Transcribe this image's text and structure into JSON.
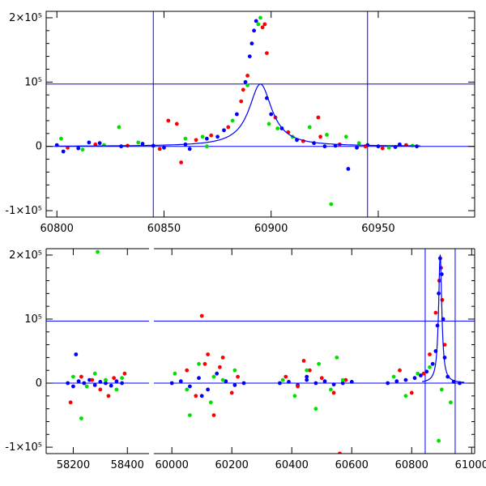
{
  "chart_data": [
    {
      "type": "scatter",
      "xlim": [
        60795,
        60995
      ],
      "ylim": [
        -110000,
        210000
      ],
      "x_ticks": [
        60800,
        60850,
        60900,
        60950
      ],
      "x_tick_labels": [
        "60800",
        "60850",
        "60900",
        "60950"
      ],
      "y_ticks": [
        -100000,
        0,
        100000,
        200000
      ],
      "y_tick_labels": [
        "-1×10⁵",
        "0",
        "10⁵",
        "2×10⁵"
      ],
      "grid": false,
      "colors": {
        "red": "#ff0000",
        "green": "#00e000",
        "blue": "#0000ff",
        "lines": "#0000ff"
      },
      "reference_lines": {
        "horizontal": [
          0,
          97000
        ],
        "vertical": [
          60845,
          60945
        ]
      },
      "model_curve": {
        "peak_x": 60895,
        "peak_y": 97000,
        "half_width": 6.5,
        "x_range": [
          60800,
          60970
        ]
      },
      "series": [
        {
          "color": "blue",
          "x": [
            60800,
            60810,
            60820,
            60830,
            60840,
            60850,
            60860,
            60870,
            60878,
            60884,
            60888,
            60890,
            60891,
            60892,
            60893,
            60898,
            60900,
            60905,
            60912,
            60920,
            60930,
            60940,
            60950,
            60960,
            60968,
            60936,
            60803,
            60815,
            60845,
            60862,
            60875,
            60925,
            60945,
            60958
          ],
          "y": [
            2000,
            -3000,
            5000,
            0,
            4000,
            -2000,
            3000,
            12000,
            25000,
            50000,
            100000,
            140000,
            160000,
            180000,
            195000,
            75000,
            50000,
            28000,
            10000,
            5000,
            1000,
            -2000,
            0,
            3000,
            0,
            -35000,
            -8000,
            6000,
            1000,
            -4000,
            15000,
            0,
            2000,
            -1000
          ]
        },
        {
          "color": "red",
          "x": [
            60805,
            60818,
            60833,
            60848,
            60858,
            60865,
            60872,
            60880,
            60886,
            60889,
            60897,
            60898,
            60902,
            60908,
            60915,
            60922,
            60923,
            60932,
            60944,
            60952,
            60963,
            60852,
            60856,
            60887,
            60896
          ],
          "y": [
            -2000,
            3000,
            1000,
            -4000,
            -25000,
            10000,
            17000,
            30000,
            70000,
            110000,
            190000,
            145000,
            45000,
            22000,
            8000,
            45000,
            15000,
            3000,
            0,
            -3000,
            2000,
            40000,
            35000,
            88000,
            185000
          ]
        },
        {
          "color": "green",
          "x": [
            60802,
            60812,
            60829,
            60838,
            60860,
            60870,
            60882,
            60889,
            60894,
            60899,
            60903,
            60910,
            60918,
            60926,
            60928,
            60935,
            60941,
            60955,
            60966,
            60822,
            60868,
            60895
          ],
          "y": [
            12000,
            -5000,
            30000,
            6000,
            12000,
            0,
            40000,
            95000,
            190000,
            35000,
            28000,
            15000,
            30000,
            18000,
            -90000,
            15000,
            5000,
            -2000,
            1000,
            2000,
            15000,
            200000
          ]
        }
      ]
    },
    {
      "type": "scatter",
      "xlim": [
        58100,
        61010
      ],
      "ylim": [
        -110000,
        210000
      ],
      "x_ticks": [
        58200,
        58400,
        60000,
        60200,
        60400,
        60600,
        60800,
        61000
      ],
      "x_tick_labels": [
        "58200",
        "58400",
        "60000",
        "60200",
        "60400",
        "60600",
        "60800",
        "61000"
      ],
      "y_ticks": [
        -100000,
        0,
        100000,
        200000
      ],
      "y_tick_labels": [
        "-1×10⁵",
        "0",
        "10⁵",
        "2×10⁵"
      ],
      "grid": false,
      "axis_break": {
        "left_segment": [
          58100,
          58480
        ],
        "right_segment": [
          59940,
          61010
        ]
      },
      "colors": {
        "red": "#ff0000",
        "green": "#00e000",
        "blue": "#0000ff",
        "lines": "#0000ff"
      },
      "reference_lines": {
        "horizontal": [
          0,
          97000
        ],
        "vertical": [
          60845,
          60945
        ]
      },
      "model_curve": {
        "peak_x": 60895,
        "peak_y": 200000,
        "half_width": 6.5
      },
      "series": [
        {
          "color": "blue",
          "x": [
            58180,
            58200,
            58220,
            58240,
            58260,
            58280,
            58300,
            58320,
            58340,
            58360,
            58380,
            58210,
            60000,
            60030,
            60060,
            60090,
            60120,
            60150,
            60180,
            60210,
            60240,
            60100,
            60360,
            60390,
            60420,
            60450,
            60480,
            60510,
            60540,
            60570,
            60600,
            60450,
            60720,
            60750,
            60780,
            60810,
            60830,
            60850,
            60870,
            60880,
            60886,
            60890,
            60895,
            60900,
            60905,
            60910,
            60920,
            60940,
            60960
          ],
          "y": [
            0,
            -5000,
            3000,
            0,
            5000,
            -3000,
            2000,
            0,
            -4000,
            3000,
            0,
            45000,
            0,
            3000,
            -5000,
            8000,
            -10000,
            15000,
            3000,
            -3000,
            0,
            -20000,
            0,
            2000,
            -3000,
            5000,
            0,
            3000,
            -2000,
            0,
            2000,
            10000,
            0,
            3000,
            5000,
            8000,
            12000,
            18000,
            30000,
            50000,
            90000,
            140000,
            195000,
            170000,
            100000,
            40000,
            10000,
            2000,
            0
          ]
        },
        {
          "color": "red",
          "x": [
            58190,
            58230,
            58270,
            58300,
            58350,
            58390,
            58330,
            60050,
            60080,
            60100,
            60110,
            60140,
            60170,
            60200,
            60220,
            60120,
            60160,
            60380,
            60420,
            60460,
            60500,
            60540,
            60580,
            60440,
            60560,
            60760,
            60800,
            60840,
            60860,
            60880,
            60892,
            60898,
            60902,
            60910
          ],
          "y": [
            -30000,
            10000,
            5000,
            -10000,
            8000,
            15000,
            -20000,
            20000,
            -20000,
            105000,
            30000,
            -50000,
            40000,
            -15000,
            10000,
            45000,
            25000,
            10000,
            -5000,
            20000,
            8000,
            -15000,
            5000,
            35000,
            -110000,
            20000,
            -15000,
            15000,
            45000,
            110000,
            160000,
            180000,
            130000,
            60000
          ]
        },
        {
          "color": "green",
          "x": [
            58200,
            58250,
            58280,
            58320,
            58360,
            58380,
            58290,
            58230,
            60010,
            60050,
            60090,
            60130,
            60170,
            60210,
            60060,
            60140,
            60370,
            60410,
            60450,
            60490,
            60530,
            60570,
            60480,
            60550,
            60740,
            60780,
            60820,
            60860,
            60900,
            60930,
            60890
          ],
          "y": [
            10000,
            -5000,
            15000,
            5000,
            -10000,
            8000,
            205000,
            -55000,
            15000,
            -10000,
            30000,
            -30000,
            5000,
            20000,
            -50000,
            10000,
            5000,
            -20000,
            20000,
            30000,
            -10000,
            5000,
            -40000,
            40000,
            10000,
            -20000,
            15000,
            25000,
            -10000,
            -30000,
            -90000
          ]
        }
      ]
    }
  ]
}
